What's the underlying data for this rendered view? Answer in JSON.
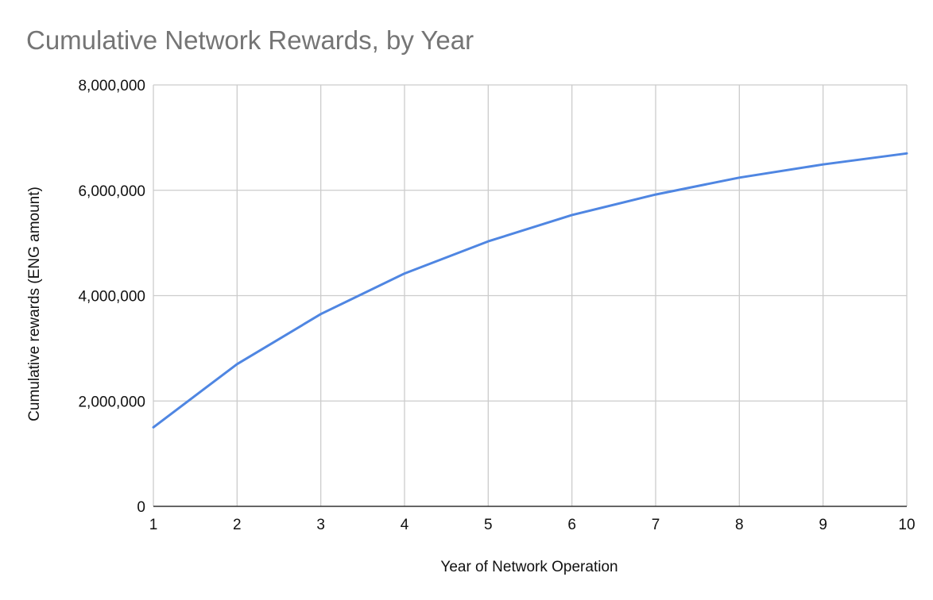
{
  "chart_data": {
    "type": "line",
    "title": "Cumulative Network Rewards, by Year",
    "xlabel": "Year of Network Operation",
    "ylabel": "Cumulative rewards (ENG amount)",
    "x": [
      1,
      2,
      3,
      4,
      5,
      6,
      7,
      8,
      9,
      10
    ],
    "x_tick_labels": [
      "1",
      "2",
      "3",
      "4",
      "5",
      "6",
      "7",
      "8",
      "9",
      "10"
    ],
    "y_tick_values": [
      0,
      2000000,
      4000000,
      6000000,
      8000000
    ],
    "y_tick_labels": [
      "0",
      "2,000,000",
      "4,000,000",
      "6,000,000",
      "8,000,000"
    ],
    "xlim": [
      1,
      10
    ],
    "ylim": [
      0,
      8000000
    ],
    "grid": true,
    "legend": "none",
    "series": [
      {
        "color": "#4f86e2",
        "values": [
          1500000,
          2700000,
          3650000,
          4420000,
          5030000,
          5530000,
          5920000,
          6240000,
          6490000,
          6700000
        ]
      }
    ]
  }
}
